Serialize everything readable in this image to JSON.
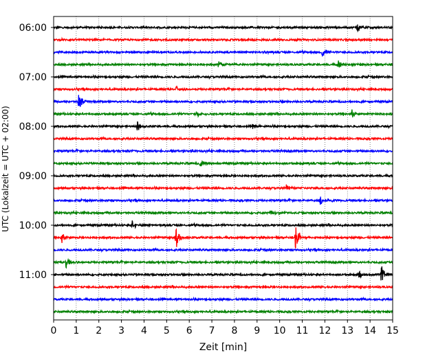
{
  "chart_data": {
    "type": "line",
    "title": "",
    "xlabel": "Zeit  [min]",
    "ylabel": "UTC (Lokalzeit = UTC + 02:00)",
    "xlim": [
      0,
      15
    ],
    "x_ticks": [
      "0",
      "1",
      "2",
      "3",
      "4",
      "5",
      "6",
      "7",
      "8",
      "9",
      "10",
      "11",
      "12",
      "13",
      "14",
      "15"
    ],
    "y_tick_labels": [
      "06:00",
      "07:00",
      "08:00",
      "09:00",
      "10:00",
      "11:00"
    ],
    "grid": "vertical dotted",
    "trace_colors": [
      "#000000",
      "#ff0000",
      "#0000ff",
      "#008000"
    ],
    "series": [
      {
        "start": "06:00",
        "color": "#000000",
        "events": [
          {
            "t": 13.4,
            "amp": 0.55
          }
        ]
      },
      {
        "start": "06:15",
        "color": "#ff0000",
        "events": []
      },
      {
        "start": "06:30",
        "color": "#0000ff",
        "events": [
          {
            "t": 11.9,
            "amp": 0.6
          }
        ]
      },
      {
        "start": "06:45",
        "color": "#008000",
        "events": [
          {
            "t": 7.3,
            "amp": 0.4
          },
          {
            "t": 12.6,
            "amp": 0.4
          }
        ]
      },
      {
        "start": "07:00",
        "color": "#000000",
        "events": []
      },
      {
        "start": "07:15",
        "color": "#ff0000",
        "events": [
          {
            "t": 5.4,
            "amp": 0.3
          }
        ]
      },
      {
        "start": "07:30",
        "color": "#0000ff",
        "events": [
          {
            "t": 1.1,
            "amp": 0.85
          }
        ]
      },
      {
        "start": "07:45",
        "color": "#008000",
        "events": [
          {
            "t": 6.3,
            "amp": 0.35
          },
          {
            "t": 13.2,
            "amp": 0.4
          }
        ]
      },
      {
        "start": "08:00",
        "color": "#000000",
        "events": [
          {
            "t": 3.7,
            "amp": 0.5
          },
          {
            "t": 8.8,
            "amp": 0.5
          }
        ]
      },
      {
        "start": "08:15",
        "color": "#ff0000",
        "events": []
      },
      {
        "start": "08:30",
        "color": "#0000ff",
        "events": []
      },
      {
        "start": "08:45",
        "color": "#008000",
        "events": [
          {
            "t": 6.5,
            "amp": 0.45
          }
        ]
      },
      {
        "start": "09:00",
        "color": "#000000",
        "events": []
      },
      {
        "start": "09:15",
        "color": "#ff0000",
        "events": [
          {
            "t": 10.3,
            "amp": 0.35
          }
        ]
      },
      {
        "start": "09:30",
        "color": "#0000ff",
        "events": [
          {
            "t": 11.8,
            "amp": 0.45
          }
        ]
      },
      {
        "start": "09:45",
        "color": "#008000",
        "events": [
          {
            "t": 9.6,
            "amp": 0.3
          }
        ]
      },
      {
        "start": "10:00",
        "color": "#000000",
        "events": [
          {
            "t": 3.45,
            "amp": 0.55
          }
        ]
      },
      {
        "start": "10:15",
        "color": "#ff0000",
        "events": [
          {
            "t": 0.35,
            "amp": 0.55
          },
          {
            "t": 5.4,
            "amp": 1.2
          },
          {
            "t": 10.7,
            "amp": 1.3
          }
        ]
      },
      {
        "start": "10:30",
        "color": "#0000ff",
        "events": []
      },
      {
        "start": "10:45",
        "color": "#008000",
        "events": [
          {
            "t": 0.55,
            "amp": 0.6
          }
        ]
      },
      {
        "start": "11:00",
        "color": "#000000",
        "events": [
          {
            "t": 14.5,
            "amp": 1.0
          },
          {
            "t": 13.5,
            "amp": 0.3
          }
        ]
      },
      {
        "start": "11:15",
        "color": "#ff0000",
        "events": []
      },
      {
        "start": "11:30",
        "color": "#0000ff",
        "events": []
      },
      {
        "start": "11:45",
        "color": "#008000",
        "events": []
      }
    ]
  }
}
